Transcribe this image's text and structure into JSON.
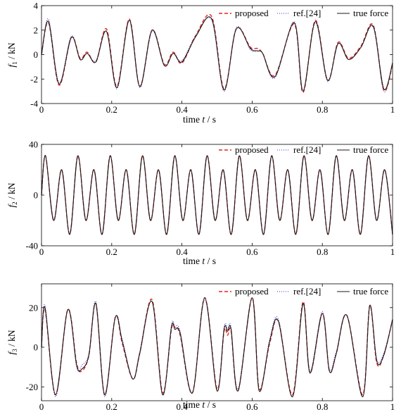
{
  "chart_data": [
    {
      "type": "line",
      "ylabel": "f1 / kN",
      "ylabel_main": "f",
      "ylabel_sub": "1",
      "ylabel_unit": " / kN",
      "xlabel": "time t / s",
      "xlabel_pre": "time ",
      "xlabel_var": "t",
      "xlabel_post": " / s",
      "xlim": [
        0,
        1
      ],
      "ylim": [
        -4,
        4
      ],
      "xticks": [
        0,
        0.2,
        0.4,
        0.6,
        0.8,
        1
      ],
      "xtick_labels": [
        "0",
        "0.2",
        "0.4",
        "0.6",
        "0.8",
        "1"
      ],
      "yticks": [
        -4,
        -2,
        0,
        2,
        4
      ],
      "ytick_labels": [
        "-4",
        "-2",
        "0",
        "2",
        "4"
      ],
      "grid": false,
      "legend_position": "top-right",
      "legend": [
        "proposed",
        "ref.[24]",
        "true force"
      ],
      "x": [
        0,
        0.02,
        0.05,
        0.085,
        0.11,
        0.13,
        0.155,
        0.185,
        0.215,
        0.25,
        0.28,
        0.315,
        0.35,
        0.375,
        0.4,
        0.44,
        0.485,
        0.52,
        0.555,
        0.595,
        0.615,
        0.63,
        0.665,
        0.72,
        0.745,
        0.78,
        0.815,
        0.845,
        0.875,
        0.91,
        0.945,
        0.975,
        1.0
      ],
      "series": [
        {
          "name": "proposed",
          "color": "#e8231c",
          "style": "dashed",
          "values": [
            0,
            2.6,
            -2.5,
            1.4,
            -0.3,
            0.2,
            -0.6,
            2.1,
            -2.6,
            2.9,
            -2.6,
            2.0,
            -0.8,
            0.2,
            -0.7,
            1.6,
            3.1,
            -2.8,
            2.1,
            0.6,
            0.5,
            0.1,
            -1.7,
            2.5,
            -3.1,
            2.8,
            -2.1,
            1.0,
            -0.3,
            0.7,
            2.4,
            -2.9,
            -0.8
          ]
        },
        {
          "name": "ref.[24]",
          "color": "#3232d2",
          "style": "dotted",
          "values": [
            0,
            2.9,
            -2.3,
            1.5,
            -0.4,
            0.1,
            -0.5,
            1.9,
            -2.8,
            2.9,
            -2.7,
            1.9,
            -0.9,
            0.1,
            -0.5,
            1.6,
            2.8,
            -3.0,
            2.2,
            0.4,
            0.3,
            0.1,
            -1.9,
            2.7,
            -2.9,
            2.6,
            -2.2,
            1.0,
            -0.4,
            0.6,
            2.2,
            -3.0,
            -0.6
          ]
        },
        {
          "name": "true force",
          "color": "#1a1a1a",
          "style": "solid",
          "values": [
            0,
            2.7,
            -2.4,
            1.4,
            -0.4,
            0.1,
            -0.6,
            1.9,
            -2.7,
            2.8,
            -2.6,
            2.0,
            -0.9,
            0.1,
            -0.6,
            1.5,
            2.9,
            -2.9,
            2.1,
            0.5,
            0.3,
            0.1,
            -1.8,
            2.6,
            -3.0,
            2.7,
            -2.1,
            0.9,
            -0.4,
            0.6,
            2.3,
            -2.8,
            -0.7
          ]
        }
      ]
    },
    {
      "type": "line",
      "ylabel": "f2 / kN",
      "ylabel_main": "f",
      "ylabel_sub": "2",
      "ylabel_unit": " / kN",
      "xlabel": "time t / s",
      "xlabel_pre": "time ",
      "xlabel_var": "t",
      "xlabel_post": " / s",
      "xlim": [
        0,
        1
      ],
      "ylim": [
        -40,
        40
      ],
      "xticks": [
        0,
        0.2,
        0.4,
        0.6,
        0.8,
        1
      ],
      "xtick_labels": [
        "0",
        "0.2",
        "0.4",
        "0.6",
        "0.8",
        "1"
      ],
      "yticks": [
        -40,
        0,
        40
      ],
      "ytick_labels": [
        "-40",
        "0",
        "40"
      ],
      "grid": false,
      "legend_position": "top-right",
      "legend": [
        "proposed",
        "ref.[24]",
        "true force"
      ],
      "x": [
        0,
        0.0115,
        0.0345,
        0.0575,
        0.0805,
        0.1035,
        0.1265,
        0.1495,
        0.1725,
        0.1955,
        0.2185,
        0.2415,
        0.2645,
        0.2875,
        0.3105,
        0.3335,
        0.3565,
        0.3795,
        0.4025,
        0.4255,
        0.4485,
        0.4715,
        0.4945,
        0.5175,
        0.5405,
        0.5635,
        0.5865,
        0.6095,
        0.6325,
        0.6555,
        0.6785,
        0.7015,
        0.7245,
        0.7475,
        0.7705,
        0.7935,
        0.8165,
        0.8395,
        0.8625,
        0.8855,
        0.9085,
        0.9315,
        0.9545,
        0.9775,
        1.0
      ],
      "series": [
        {
          "name": "proposed",
          "color": "#e8231c",
          "style": "dashed",
          "values": [
            0,
            31,
            -20,
            20,
            -31,
            31,
            -20,
            20,
            -31,
            31,
            -20,
            20,
            -31,
            31,
            -20,
            20,
            -31,
            31,
            -20,
            20,
            -31,
            31,
            -20,
            20,
            -31,
            31,
            -20,
            20,
            -31,
            31,
            -20,
            20,
            -31,
            31,
            -20,
            20,
            -31,
            31,
            -20,
            20,
            -31,
            31,
            -20,
            20,
            -31
          ]
        },
        {
          "name": "ref.[24]",
          "color": "#3232d2",
          "style": "dotted",
          "values": [
            0,
            31,
            -20,
            20,
            -31,
            31,
            -20,
            20,
            -31,
            31,
            -20,
            20,
            -31,
            31,
            -20,
            20,
            -31,
            31,
            -20,
            20,
            -31,
            31,
            -20,
            20,
            -31,
            31,
            -20,
            20,
            -31,
            31,
            -20,
            20,
            -31,
            31,
            -20,
            20,
            -31,
            31,
            -20,
            20,
            -31,
            31,
            -20,
            20,
            -31
          ]
        },
        {
          "name": "true force",
          "color": "#1a1a1a",
          "style": "solid",
          "values": [
            0,
            31,
            -20,
            20,
            -31,
            31,
            -20,
            20,
            -31,
            31,
            -20,
            20,
            -31,
            31,
            -20,
            20,
            -31,
            31,
            -20,
            20,
            -31,
            31,
            -20,
            20,
            -31,
            31,
            -20,
            20,
            -31,
            31,
            -20,
            20,
            -31,
            31,
            -20,
            20,
            -31,
            31,
            -20,
            20,
            -31,
            31,
            -20,
            20,
            -31
          ]
        }
      ]
    },
    {
      "type": "line",
      "ylabel": "f3 / kN",
      "ylabel_main": "f",
      "ylabel_sub": "3",
      "ylabel_unit": " / kN",
      "xlabel": "time t / s",
      "xlabel_pre": "time ",
      "xlabel_var": "t",
      "xlabel_post": " / s",
      "xlim": [
        0,
        1
      ],
      "ylim": [
        -27,
        32
      ],
      "xticks": [
        0,
        0.2,
        0.4,
        0.6,
        0.8,
        1
      ],
      "xtick_labels": [
        "0",
        "0.2",
        "0.4",
        "0.6",
        "0.8",
        "1"
      ],
      "yticks": [
        -20,
        0,
        20
      ],
      "ytick_labels": [
        "-20",
        "0",
        "20"
      ],
      "grid": false,
      "legend_position": "top-right",
      "legend": [
        "proposed",
        "ref.[24]",
        "true force"
      ],
      "x": [
        0,
        0.01,
        0.04,
        0.075,
        0.1,
        0.115,
        0.135,
        0.155,
        0.18,
        0.21,
        0.23,
        0.26,
        0.28,
        0.315,
        0.345,
        0.37,
        0.38,
        0.395,
        0.43,
        0.465,
        0.5,
        0.52,
        0.53,
        0.54,
        0.56,
        0.6,
        0.62,
        0.65,
        0.675,
        0.715,
        0.745,
        0.765,
        0.8,
        0.82,
        0.84,
        0.87,
        0.915,
        0.935,
        0.955,
        0.975,
        1.0
      ],
      "series": [
        {
          "name": "proposed",
          "color": "#e8231c",
          "style": "dashed",
          "values": [
            0,
            19,
            -24,
            19,
            -8,
            -12,
            -4,
            22,
            -24,
            15,
            2,
            -16,
            -3,
            24,
            -23,
            9,
            10,
            6,
            -23,
            25,
            -21,
            8,
            6,
            8,
            -22,
            25,
            -21,
            2,
            13,
            -24,
            23,
            -13,
            17,
            -12,
            -3,
            16,
            -24,
            21,
            -8,
            -4,
            14
          ]
        },
        {
          "name": "ref.[24]",
          "color": "#3232d2",
          "style": "dotted",
          "values": [
            0,
            21,
            -25,
            19,
            -10,
            -9,
            -3,
            23,
            -25,
            15,
            4,
            -16,
            -2,
            23,
            -24,
            11,
            10,
            8,
            -23,
            24,
            -22,
            10,
            9,
            10,
            -21,
            25,
            -22,
            4,
            14,
            -25,
            22,
            -12,
            18,
            -11,
            -2,
            16,
            -25,
            21,
            -6,
            -3,
            14
          ]
        },
        {
          "name": "true force",
          "color": "#1a1a1a",
          "style": "solid",
          "values": [
            0,
            20,
            -24,
            19,
            -9,
            -11,
            -4,
            22,
            -24,
            15,
            3,
            -16,
            -3,
            23,
            -24,
            10,
            9,
            7,
            -23,
            25,
            -22,
            9,
            8,
            9,
            -22,
            25,
            -22,
            3,
            13,
            -25,
            22,
            -13,
            17,
            -12,
            -3,
            16,
            -25,
            21,
            -7,
            -4,
            14
          ]
        }
      ]
    }
  ]
}
